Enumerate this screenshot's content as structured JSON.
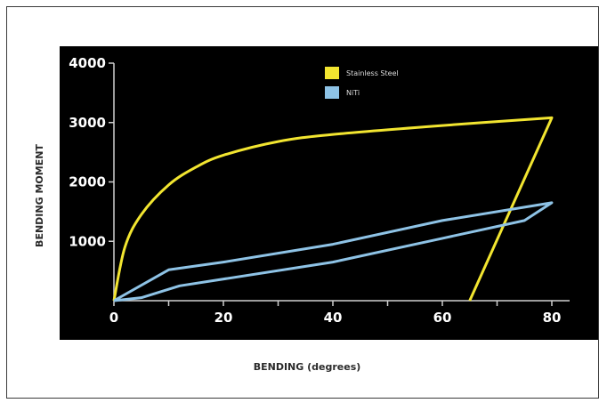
{
  "chart_data": {
    "type": "line",
    "title": "",
    "xlabel": "BENDING (degrees)",
    "ylabel": "BENDING MOMENT",
    "xlim": [
      0,
      80
    ],
    "ylim": [
      0,
      4000
    ],
    "x_ticks": [
      "0",
      "20",
      "40",
      "60",
      "80"
    ],
    "y_ticks": [
      "1000",
      "2000",
      "3000",
      "4000"
    ],
    "grid": false,
    "legend_position": "top-center",
    "background": "#000000",
    "series": [
      {
        "name": "Stainless Steel",
        "color": "#f2e530",
        "x": [
          0,
          2,
          5,
          10,
          15,
          20,
          30,
          40,
          60,
          80,
          65
        ],
        "y": [
          0,
          900,
          1450,
          1950,
          2250,
          2450,
          2680,
          2800,
          2950,
          3080,
          0
        ]
      },
      {
        "name": "NiTi",
        "color": "#8ec3e6",
        "x": [
          0,
          10,
          20,
          40,
          60,
          80,
          75,
          60,
          40,
          12,
          5,
          0
        ],
        "y": [
          0,
          520,
          650,
          950,
          1350,
          1650,
          1350,
          1050,
          650,
          250,
          50,
          0
        ]
      }
    ]
  }
}
